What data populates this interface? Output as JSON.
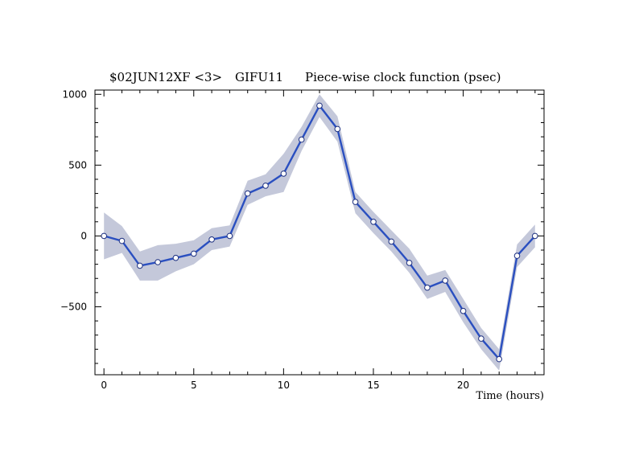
{
  "chart_data": {
    "type": "line",
    "title": {
      "source": "$02JUN12XF <3>",
      "station": "GIFU11",
      "text": "Piece-wise clock function (psec)"
    },
    "xlabel": "Time (hours)",
    "ylabel": "",
    "xlim": [
      -0.5,
      24.5
    ],
    "ylim": [
      -980,
      1030
    ],
    "xticks": [
      0,
      5,
      10,
      15,
      20
    ],
    "yticks": [
      1000,
      500,
      0,
      -500
    ],
    "grid": false,
    "colors": {
      "line": "#2a4fc0",
      "band": "#c4c8da",
      "marker_fill": "#ffffff",
      "axis": "#000000"
    },
    "series": [
      {
        "x": [
          0,
          1,
          2,
          3,
          4,
          5,
          6,
          7,
          8,
          9,
          10,
          11,
          12,
          13,
          14,
          15,
          16,
          17,
          18,
          19,
          20,
          21,
          22,
          23,
          24
        ],
        "values": [
          0,
          -35,
          -210,
          -185,
          -155,
          -125,
          -25,
          0,
          300,
          355,
          440,
          680,
          920,
          755,
          240,
          100,
          -40,
          -190,
          -365,
          -315,
          -530,
          -725,
          -870,
          -140,
          0
        ],
        "band_upper": [
          165,
          70,
          -110,
          -65,
          -55,
          -30,
          55,
          75,
          390,
          435,
          580,
          770,
          1000,
          845,
          310,
          170,
          40,
          -90,
          -280,
          -240,
          -445,
          -650,
          -800,
          -60,
          80
        ],
        "band_lower": [
          -165,
          -120,
          -315,
          -315,
          -250,
          -200,
          -100,
          -75,
          220,
          280,
          310,
          600,
          840,
          665,
          160,
          20,
          -110,
          -260,
          -445,
          -395,
          -610,
          -800,
          -950,
          -220,
          -80
        ]
      }
    ]
  }
}
